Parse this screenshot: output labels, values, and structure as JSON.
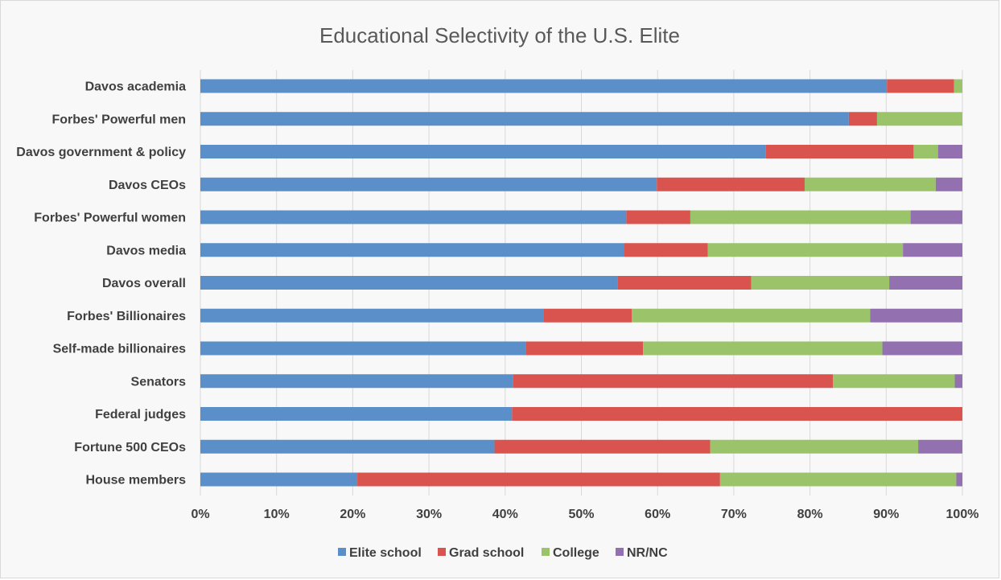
{
  "chart_data": {
    "type": "bar",
    "orientation": "horizontal",
    "stacked": true,
    "title": "Educational Selectivity of the U.S. Elite",
    "xlabel": "",
    "ylabel": "",
    "xlim": [
      0,
      100
    ],
    "x_ticks": [
      "0%",
      "10%",
      "20%",
      "30%",
      "40%",
      "50%",
      "60%",
      "70%",
      "80%",
      "90%",
      "100%"
    ],
    "grid": "vertical",
    "legend": "bottom",
    "categories": [
      "Davos academia",
      "Forbes' Powerful men",
      "Davos government & policy",
      "Davos CEOs",
      "Forbes' Powerful women",
      "Davos media",
      "Davos overall",
      "Forbes' Billionaires",
      "Self-made billionaires",
      "Senators",
      "Federal judges",
      "Fortune 500 CEOs",
      "House members"
    ],
    "series": [
      {
        "name": "Elite school",
        "color": "#5b8fc9",
        "values": [
          90.1,
          85.1,
          74.2,
          59.9,
          55.9,
          55.6,
          54.8,
          45.0,
          42.7,
          41.0,
          40.9,
          38.6,
          20.6
        ]
      },
      {
        "name": "Grad school",
        "color": "#d9534f",
        "values": [
          8.8,
          3.7,
          19.4,
          19.4,
          8.4,
          11.0,
          17.5,
          11.6,
          15.4,
          42.0,
          59.1,
          28.3,
          47.6
        ]
      },
      {
        "name": "College",
        "color": "#9bc46a",
        "values": [
          1.1,
          11.2,
          3.2,
          17.2,
          28.9,
          25.6,
          18.1,
          31.3,
          31.4,
          16.0,
          0.0,
          27.3,
          31.0
        ]
      },
      {
        "name": "NR/NC",
        "color": "#9370b0",
        "values": [
          0.0,
          0.0,
          3.2,
          3.5,
          6.8,
          7.8,
          9.6,
          12.1,
          10.5,
          1.0,
          0.0,
          5.8,
          0.8
        ]
      }
    ]
  }
}
